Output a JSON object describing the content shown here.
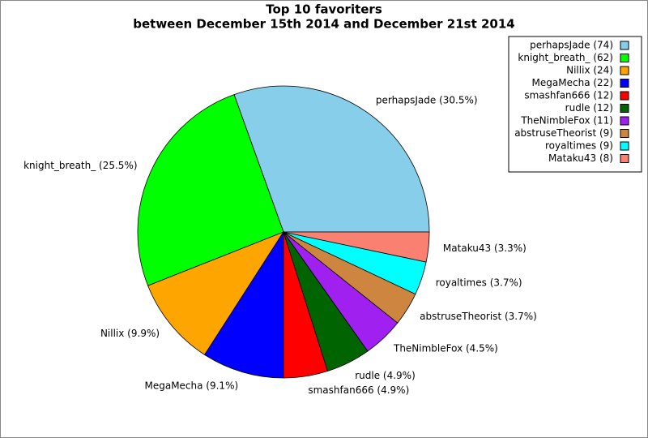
{
  "chart_data": {
    "type": "pie",
    "title": "Top 10 favoriters",
    "subtitle": "between December 15th 2014 and December 21st 2014",
    "values": [
      30.5,
      25.5,
      9.9,
      9.1,
      4.9,
      4.9,
      4.5,
      3.7,
      3.7,
      3.3
    ],
    "value_labels": [
      "perhapsJade (30.5%)",
      "knight_breath_ (25.5%)",
      "Nillix (9.9%)",
      "MegaMecha (9.1%)",
      "smashfan666 (4.9%)",
      "rudle (4.9%)",
      "TheNimbleFox (4.5%)",
      "abstruseTheorist (3.7%)",
      "royaltimes (3.7%)",
      "Mataku43 (3.3%)"
    ],
    "legend_labels": [
      "perhapsJade (74)",
      "knight_breath_ (62)",
      "Nillix (24)",
      "MegaMecha (22)",
      "smashfan666 (12)",
      "rudle (12)",
      "TheNimbleFox (11)",
      "abstruseTheorist (9)",
      "royaltimes (9)",
      "Mataku43 (8)"
    ],
    "colors": [
      "#87ceeb",
      "#00ff00",
      "#ffa500",
      "#0000ff",
      "#ff0000",
      "#006400",
      "#a020f0",
      "#cd853f",
      "#00ffff",
      "#fa8072"
    ],
    "legend_position": "upper right"
  }
}
